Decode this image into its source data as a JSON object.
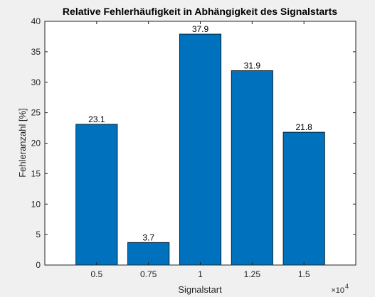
{
  "chart_data": {
    "type": "bar",
    "title": "Relative Fehlerhäufigkeit in Abhängigkeit des Signalstarts",
    "xlabel": "Signalstart",
    "ylabel": "Fehleranzahl [%]",
    "x_exponent_label": "×10",
    "x_exponent_power": "4",
    "categories": [
      "0.5",
      "0.75",
      "1",
      "1.25",
      "1.5"
    ],
    "values": [
      23.1,
      3.7,
      37.9,
      31.9,
      21.8
    ],
    "value_labels": [
      "23.1",
      "3.7",
      "37.9",
      "31.9",
      "21.8"
    ],
    "yticks": [
      "0",
      "5",
      "10",
      "15",
      "20",
      "25",
      "30",
      "35",
      "40"
    ],
    "ylim": [
      0,
      40
    ],
    "xlim": [
      0.25,
      1.75
    ],
    "grid": false,
    "colors": {
      "bar": "#0072bd",
      "bar_edge": "#000000",
      "axes_bg": "#ffffff",
      "figure_bg": "#f0f0f0",
      "text": "#262626"
    }
  }
}
